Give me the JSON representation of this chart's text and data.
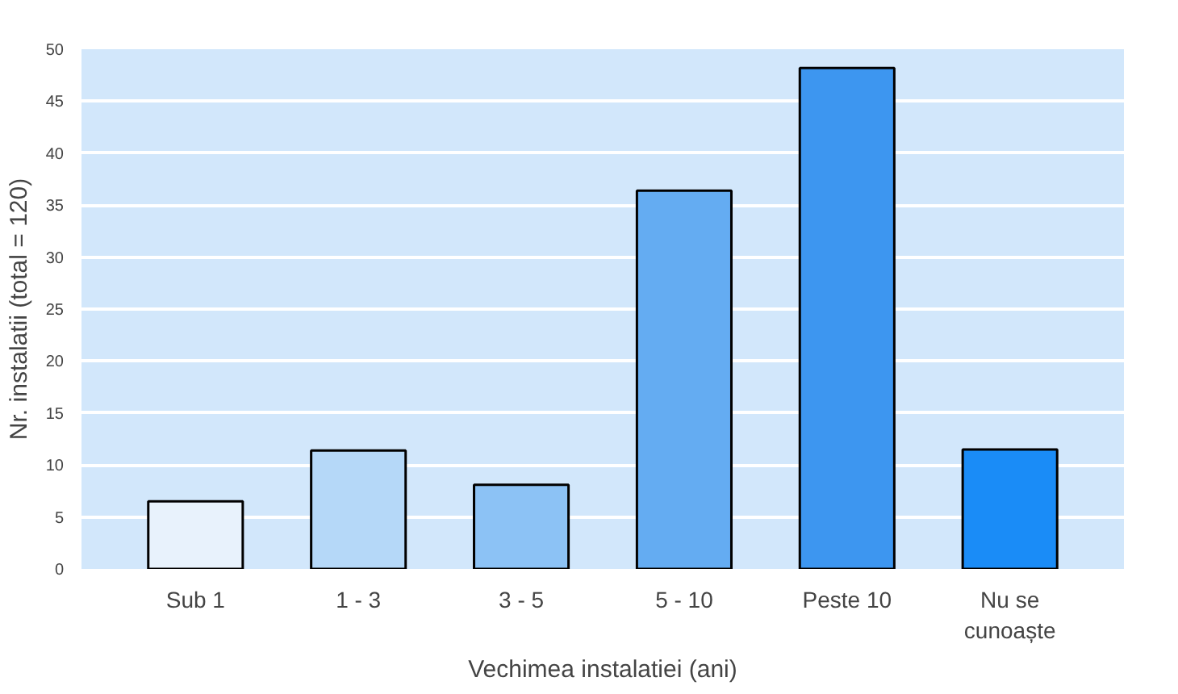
{
  "chart_data": {
    "type": "bar",
    "xlabel": "Vechimea instalatiei (ani)",
    "ylabel": "Nr. instalatii (total = 120)",
    "categories": [
      "Sub 1",
      "1 - 3",
      "3 - 5",
      "5 - 10",
      "Peste 10",
      "Nu se cunoaște"
    ],
    "values": [
      6.5,
      11.4,
      8.1,
      36.4,
      48.2,
      11.5
    ],
    "colors": [
      "#e8f2fc",
      "#b5d8f8",
      "#8cc2f5",
      "#64acf2",
      "#3d96f0",
      "#1a8cf7"
    ],
    "ylim": [
      0,
      50
    ],
    "yticks": [
      0,
      5,
      10,
      15,
      20,
      25,
      30,
      35,
      40,
      45,
      50
    ],
    "grid": "y"
  }
}
